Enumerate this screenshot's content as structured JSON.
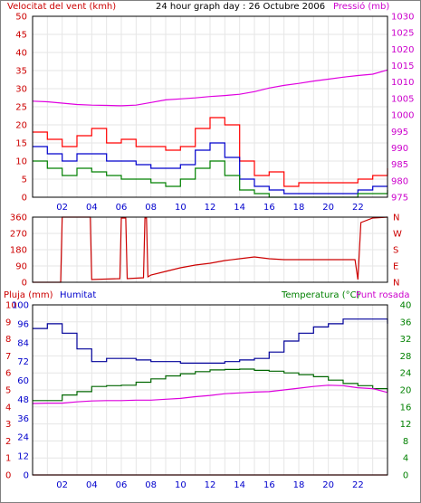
{
  "header": {
    "wind_title": "Velocitat del vent (kmh)",
    "graph_title": "24 hour graph day : 26 Octubre 2006",
    "pressure_title": "Pressió (mb)"
  },
  "colors": {
    "frame": "#000000",
    "grid": "#e6e6e6",
    "wind_gust": "#ff0000",
    "wind_avg": "#0000cc",
    "wind_low": "#008000",
    "pressure": "#e000e0",
    "direction": "#cc0000",
    "rain": "#cc0000",
    "humidity": "#000099",
    "temperature": "#006600",
    "dewpoint": "#dd00dd",
    "axis_red": "#cc0000",
    "axis_blue": "#0000cc",
    "axis_green": "#008000",
    "axis_magenta": "#cc00cc"
  },
  "chart_data": [
    {
      "id": "wind_pressure",
      "type": "line",
      "x_ticks": [
        "02",
        "04",
        "06",
        "08",
        "10",
        "12",
        "14",
        "16",
        "18",
        "20",
        "22"
      ],
      "x_range": [
        0,
        24
      ],
      "y_left": {
        "title": "Velocitat del vent (kmh)",
        "range": [
          0,
          50
        ],
        "ticks": [
          0,
          5,
          10,
          15,
          20,
          25,
          30,
          35,
          40,
          45,
          50
        ]
      },
      "y_right": {
        "title": "Pressió (mb)",
        "range": [
          975,
          1030
        ],
        "ticks": [
          975,
          980,
          985,
          990,
          995,
          1000,
          1005,
          1010,
          1015,
          1020,
          1025,
          1030
        ]
      },
      "series": [
        {
          "key": "gust",
          "axis": "left",
          "x": [
            0,
            1,
            2,
            3,
            4,
            5,
            6,
            7,
            8,
            9,
            10,
            11,
            12,
            13,
            14,
            15,
            16,
            17,
            18,
            19,
            20,
            21,
            22,
            23,
            24
          ],
          "y": [
            18,
            16,
            14,
            17,
            19,
            15,
            16,
            14,
            14,
            13,
            14,
            19,
            22,
            20,
            10,
            6,
            7,
            3,
            4,
            4,
            4,
            4,
            5,
            6,
            8
          ]
        },
        {
          "key": "average",
          "axis": "left",
          "x": [
            0,
            1,
            2,
            3,
            4,
            5,
            6,
            7,
            8,
            9,
            10,
            11,
            12,
            13,
            14,
            15,
            16,
            17,
            18,
            19,
            20,
            21,
            22,
            23,
            24
          ],
          "y": [
            14,
            12,
            10,
            12,
            12,
            10,
            10,
            9,
            8,
            8,
            9,
            13,
            15,
            11,
            5,
            3,
            2,
            1,
            1,
            1,
            1,
            1,
            2,
            3,
            3
          ]
        },
        {
          "key": "minimum",
          "axis": "left",
          "x": [
            0,
            1,
            2,
            3,
            4,
            5,
            6,
            7,
            8,
            9,
            10,
            11,
            12,
            13,
            14,
            15,
            16,
            17,
            18,
            19,
            20,
            21,
            22,
            23,
            24
          ],
          "y": [
            10,
            8,
            6,
            8,
            7,
            6,
            5,
            5,
            4,
            3,
            5,
            8,
            10,
            6,
            2,
            1,
            0,
            0,
            0,
            0,
            0,
            0,
            1,
            1,
            2
          ]
        },
        {
          "key": "pressure",
          "axis": "right",
          "x": [
            0,
            1,
            2,
            3,
            4,
            5,
            6,
            7,
            8,
            9,
            10,
            11,
            12,
            13,
            14,
            15,
            16,
            17,
            18,
            19,
            20,
            21,
            22,
            23,
            24
          ],
          "y": [
            1004.2,
            1004,
            1003.6,
            1003.2,
            1003,
            1002.9,
            1002.8,
            1003,
            1003.8,
            1004.6,
            1004.9,
            1005.2,
            1005.6,
            1005.9,
            1006.3,
            1007.1,
            1008.2,
            1009,
            1009.6,
            1010.3,
            1010.9,
            1011.5,
            1012,
            1012.4,
            1013.7
          ]
        }
      ]
    },
    {
      "id": "direction",
      "type": "line",
      "x_range": [
        0,
        24
      ],
      "y_left": {
        "range": [
          0,
          360
        ],
        "ticks": [
          0,
          90,
          180,
          270,
          360
        ]
      },
      "y_right_labels": [
        "N",
        "W",
        "S",
        "E",
        "N"
      ],
      "series": [
        {
          "key": "direction",
          "axis": "left",
          "x": [
            0,
            1,
            1.9,
            2,
            3.9,
            4,
            5.9,
            6,
            6.3,
            6.4,
            7.5,
            7.6,
            7.7,
            7.8,
            8,
            9,
            10,
            11,
            12,
            13,
            14,
            15,
            16,
            17,
            18,
            19,
            20,
            21,
            21.8,
            22,
            22.2,
            23,
            24
          ],
          "y": [
            0,
            0,
            0,
            360,
            360,
            15,
            20,
            355,
            355,
            20,
            25,
            355,
            355,
            30,
            40,
            60,
            80,
            95,
            105,
            120,
            130,
            140,
            130,
            125,
            125,
            125,
            125,
            125,
            125,
            15,
            330,
            355,
            360
          ]
        }
      ]
    },
    {
      "id": "rain_hum_temp",
      "type": "line",
      "x_range": [
        0,
        24
      ],
      "y_rain": {
        "title": "Pluja (mm)",
        "range": [
          0,
          10
        ],
        "ticks": [
          0,
          1,
          2,
          3,
          4,
          5,
          6,
          7,
          8,
          9,
          10
        ]
      },
      "y_humidity": {
        "title": "Humitat",
        "range": [
          0,
          100
        ],
        "ticks": [
          0,
          12,
          24,
          36,
          48,
          60,
          72,
          84,
          96,
          100
        ]
      },
      "y_temp": {
        "title": "Temperatura (°C)",
        "range": [
          0,
          40
        ],
        "ticks": [
          0,
          4,
          8,
          12,
          16,
          20,
          24,
          28,
          32,
          36,
          40
        ]
      },
      "dewpoint_title": "Punt rosada",
      "series": [
        {
          "key": "rain",
          "axis": "rain",
          "x": [
            0,
            24
          ],
          "y": [
            0,
            0
          ]
        },
        {
          "key": "humidity",
          "axis": "humidity",
          "x": [
            0,
            1,
            2,
            3,
            4,
            5,
            6,
            7,
            8,
            9,
            10,
            11,
            12,
            13,
            14,
            15,
            16,
            17,
            18,
            19,
            20,
            21,
            22,
            23,
            24
          ],
          "y": [
            93,
            96,
            90,
            80,
            72,
            74,
            74,
            73,
            72,
            72,
            71,
            71,
            71,
            72,
            73,
            74,
            78,
            85,
            90,
            94,
            96,
            97,
            97,
            97,
            96
          ]
        },
        {
          "key": "temperature",
          "axis": "temp",
          "x": [
            0,
            1,
            2,
            3,
            4,
            5,
            6,
            7,
            8,
            9,
            10,
            11,
            12,
            13,
            14,
            15,
            16,
            17,
            18,
            19,
            20,
            21,
            22,
            23,
            24
          ],
          "y": [
            17.5,
            17.5,
            18.8,
            19.6,
            20.8,
            21,
            21.1,
            21.8,
            22.6,
            23.3,
            23.8,
            24.3,
            24.7,
            24.8,
            24.9,
            24.6,
            24.4,
            24,
            23.6,
            23.1,
            22.3,
            21.5,
            21,
            20.3,
            19.6
          ]
        },
        {
          "key": "dewpoint",
          "axis": "temp",
          "x": [
            0,
            1,
            2,
            3,
            4,
            5,
            6,
            7,
            8,
            9,
            10,
            11,
            12,
            13,
            14,
            15,
            16,
            17,
            18,
            19,
            20,
            21,
            22,
            23,
            24
          ],
          "y": [
            16.8,
            16.9,
            16.9,
            17.2,
            17.4,
            17.5,
            17.5,
            17.6,
            17.6,
            17.8,
            18,
            18.4,
            18.7,
            19.1,
            19.3,
            19.5,
            19.6,
            20,
            20.4,
            20.8,
            21.1,
            21,
            20.5,
            20.3,
            19.4
          ]
        }
      ]
    }
  ]
}
